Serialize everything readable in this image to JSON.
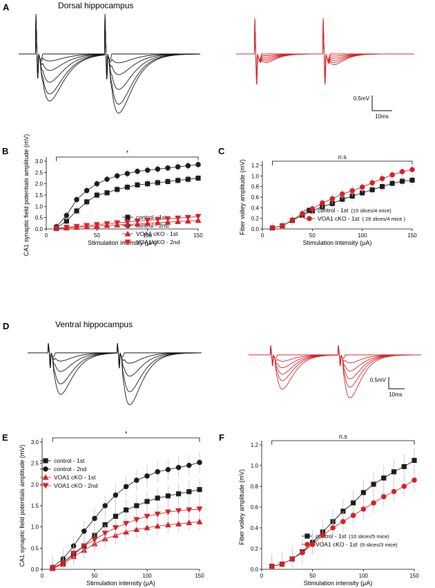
{
  "colors": {
    "black": "#1c1c1c",
    "red": "#d42127",
    "error": "#c8c8c8"
  },
  "panels": {
    "A": {
      "letter": "A",
      "title": "Dorsal hippocampus",
      "scale_voltage": "0.5mV",
      "scale_time": "10ms"
    },
    "D": {
      "letter": "D",
      "title": "Ventral hippocampus",
      "scale_voltage": "0.5mV",
      "scale_time": "10ms"
    }
  },
  "chart_data": [
    {
      "panel": "B",
      "letter": "B",
      "type": "scatter-line",
      "xlabel": "Stimulation intensity (μA)",
      "ylabel": "CA1 synaptic field potentials amplitude (mV)",
      "xlim": [
        0,
        150
      ],
      "ylim": [
        0,
        3.0
      ],
      "xticks": [
        0,
        50,
        100,
        150
      ],
      "xtick_labels": [
        "0",
        "50",
        "100",
        "150"
      ],
      "yticks": [
        0,
        0.5,
        1.0,
        1.5,
        2.0,
        2.5,
        3.0
      ],
      "ytick_labels": [
        "0.0",
        "0.5",
        "1.0",
        "1.5",
        "2.0",
        "2.5",
        "3.0"
      ],
      "significance": "*",
      "x": [
        10,
        20,
        30,
        40,
        50,
        60,
        70,
        80,
        90,
        100,
        110,
        120,
        130,
        140,
        150
      ],
      "legend": {
        "position": "center-right"
      },
      "series": [
        {
          "name": "control - 1st",
          "marker": "square",
          "color": "black",
          "err": 0.2,
          "values": [
            0.05,
            0.35,
            0.8,
            1.2,
            1.5,
            1.6,
            1.75,
            1.85,
            1.95,
            2.0,
            2.05,
            2.1,
            2.15,
            2.2,
            2.25
          ]
        },
        {
          "name": "control - 2nd",
          "marker": "circle",
          "color": "black",
          "err": 0.2,
          "values": [
            0.1,
            0.6,
            1.3,
            1.7,
            2.0,
            2.2,
            2.35,
            2.45,
            2.55,
            2.6,
            2.65,
            2.7,
            2.75,
            2.8,
            2.85
          ]
        },
        {
          "name": "VOA1 cKO - 1st",
          "marker": "triangle-up",
          "color": "red",
          "err": 0.12,
          "values": [
            0.02,
            0.05,
            0.08,
            0.1,
            0.13,
            0.16,
            0.18,
            0.2,
            0.22,
            0.25,
            0.28,
            0.3,
            0.33,
            0.35,
            0.38
          ]
        },
        {
          "name": "VOA1 cKO - 2nd",
          "marker": "triangle-down",
          "color": "red",
          "err": 0.12,
          "values": [
            0.03,
            0.07,
            0.11,
            0.15,
            0.19,
            0.23,
            0.27,
            0.31,
            0.35,
            0.38,
            0.42,
            0.45,
            0.48,
            0.51,
            0.55
          ]
        }
      ]
    },
    {
      "panel": "C",
      "letter": "C",
      "type": "scatter-line",
      "xlabel": "Stimulation intensity (μA)",
      "ylabel": "Fiber volley amplitude (mV)",
      "xlim": [
        0,
        150
      ],
      "ylim": [
        0,
        1.2
      ],
      "xticks": [
        0,
        50,
        100,
        150
      ],
      "xtick_labels": [
        "0",
        "50",
        "100",
        "150"
      ],
      "yticks": [
        0,
        0.2,
        0.4,
        0.6,
        0.8,
        1.0,
        1.2
      ],
      "ytick_labels": [
        "0.0",
        "0.2",
        "0.4",
        "0.6",
        "0.8",
        "1.0",
        "1.2"
      ],
      "significance": "n.s",
      "x": [
        10,
        20,
        30,
        40,
        50,
        60,
        70,
        80,
        90,
        100,
        110,
        120,
        130,
        140,
        150
      ],
      "legend": {
        "position": "bottom-right"
      },
      "series": [
        {
          "name": "control - 1st",
          "note": "(15 slices/4 mice)",
          "marker": "square",
          "color": "black",
          "err": 0.1,
          "values": [
            0.02,
            0.06,
            0.16,
            0.26,
            0.34,
            0.42,
            0.48,
            0.56,
            0.62,
            0.68,
            0.74,
            0.8,
            0.86,
            0.9,
            0.92
          ]
        },
        {
          "name": "VOA1 cKO - 1st",
          "note": "( 26 slices/4 mice )",
          "marker": "circle",
          "color": "red",
          "err": 0.1,
          "values": [
            0.02,
            0.06,
            0.17,
            0.29,
            0.38,
            0.49,
            0.57,
            0.66,
            0.72,
            0.79,
            0.87,
            0.95,
            1.02,
            1.08,
            1.12
          ]
        }
      ]
    },
    {
      "panel": "E",
      "letter": "E",
      "type": "scatter-line",
      "xlabel": "Stimulation intensity (μA)",
      "ylabel": "CA1 synaptic field potentials amplitude (mV)",
      "xlim": [
        0,
        150
      ],
      "ylim": [
        0,
        3.0
      ],
      "xticks": [
        0,
        50,
        100,
        150
      ],
      "xtick_labels": [
        "0",
        "50",
        "100",
        "150"
      ],
      "yticks": [
        0,
        0.5,
        1.0,
        1.5,
        2.0,
        2.5,
        3.0
      ],
      "ytick_labels": [
        "0.0",
        "0.5",
        "1.0",
        "1.5",
        "2.0",
        "2.5",
        "3.0"
      ],
      "significance": "*",
      "x": [
        10,
        20,
        30,
        40,
        50,
        60,
        70,
        80,
        90,
        100,
        110,
        120,
        130,
        140,
        150
      ],
      "legend": {
        "position": "top-left"
      },
      "series": [
        {
          "name": "control - 1st",
          "marker": "square",
          "color": "black",
          "err": 0.25,
          "values": [
            0.02,
            0.15,
            0.35,
            0.55,
            0.8,
            1.05,
            1.25,
            1.4,
            1.5,
            1.6,
            1.68,
            1.73,
            1.78,
            1.83,
            1.88
          ]
        },
        {
          "name": "control - 2nd",
          "marker": "circle",
          "color": "black",
          "err": 0.25,
          "values": [
            0.05,
            0.25,
            0.55,
            0.9,
            1.2,
            1.5,
            1.75,
            1.95,
            2.1,
            2.2,
            2.3,
            2.35,
            2.4,
            2.45,
            2.52
          ]
        },
        {
          "name": "VOA1 cKO - 1st",
          "marker": "triangle-up",
          "color": "red",
          "err": 0.2,
          "values": [
            0.02,
            0.12,
            0.3,
            0.45,
            0.6,
            0.72,
            0.8,
            0.88,
            0.94,
            0.98,
            1.02,
            1.05,
            1.07,
            1.1,
            1.12
          ]
        },
        {
          "name": "VOA1 cKO - 2nd",
          "marker": "triangle-down",
          "color": "red",
          "err": 0.2,
          "values": [
            0.03,
            0.15,
            0.38,
            0.55,
            0.7,
            0.85,
            0.98,
            1.08,
            1.17,
            1.25,
            1.3,
            1.35,
            1.38,
            1.4,
            1.42
          ]
        }
      ]
    },
    {
      "panel": "F",
      "letter": "F",
      "type": "scatter-line",
      "xlabel": "Stimulation intensity (μA)",
      "ylabel": "Fiber volley amplitude (mV)",
      "xlim": [
        0,
        150
      ],
      "ylim": [
        0,
        1.2
      ],
      "xticks": [
        0,
        50,
        100,
        150
      ],
      "xtick_labels": [
        "0",
        "50",
        "100",
        "150"
      ],
      "yticks": [
        0,
        0.2,
        0.4,
        0.6,
        0.8,
        1.0,
        1.2
      ],
      "ytick_labels": [
        "0.0",
        "0.2",
        "0.4",
        "0.6",
        "0.8",
        "1.0",
        "1.2"
      ],
      "significance": "n.s",
      "x": [
        10,
        20,
        30,
        40,
        50,
        60,
        70,
        80,
        90,
        100,
        110,
        120,
        130,
        140,
        150
      ],
      "legend": {
        "position": "bottom-right"
      },
      "series": [
        {
          "name": "control - 1st",
          "note": "(10 slices/5 mice)",
          "marker": "square",
          "color": "black",
          "err": 0.12,
          "values": [
            0.03,
            0.05,
            0.1,
            0.17,
            0.26,
            0.36,
            0.46,
            0.56,
            0.64,
            0.74,
            0.82,
            0.88,
            0.94,
            0.99,
            1.05
          ]
        },
        {
          "name": "VOA1 cKO - 1st",
          "note": "(9 slices/3 mice)",
          "marker": "circle",
          "color": "red",
          "err": 0.1,
          "values": [
            0.03,
            0.05,
            0.1,
            0.16,
            0.24,
            0.33,
            0.4,
            0.46,
            0.52,
            0.58,
            0.64,
            0.7,
            0.75,
            0.8,
            0.86
          ]
        }
      ]
    }
  ]
}
